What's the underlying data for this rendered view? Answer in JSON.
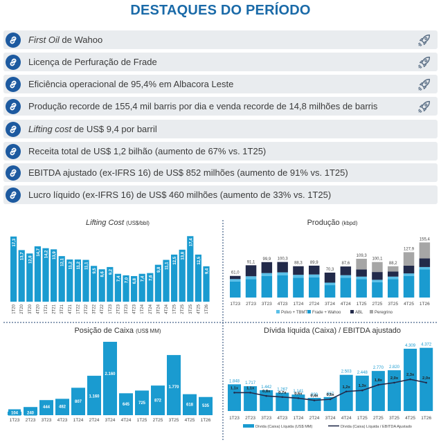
{
  "header": {
    "title": "DESTAQUES DO PERÍODO"
  },
  "highlights": [
    {
      "italic": "First Oil",
      "rest": " de Wahoo",
      "rocket": true
    },
    {
      "italic": "",
      "rest": "Licença de Perfuração de Frade",
      "rocket": true
    },
    {
      "italic": "",
      "rest": "Eficiência operacional de 95,4% em Albacora Leste",
      "rocket": true
    },
    {
      "italic": "",
      "rest": "Produção recorde de 155,4 mil barris por dia e venda recorde de 14,8 milhões de barris",
      "rocket": true
    },
    {
      "italic": "Lifting cost",
      "rest": " de US$ 9,4 por barril",
      "rocket": false
    },
    {
      "italic": "",
      "rest": "Receita total de US$ 1,2 bilhão (aumento de 67% vs. 1T25)",
      "rocket": false
    },
    {
      "italic": "",
      "rest": "EBITDA ajustado (ex-IFRS 16) de US$ 852 milhões (aumento de 91% vs. 1T25)",
      "rocket": false
    },
    {
      "italic": "",
      "rest": "Lucro líquido (ex-IFRS 16) de US$ 460 milhões (aumento de 33% vs. 1T25)",
      "rocket": false
    }
  ],
  "icons": {
    "badge": "link-icon",
    "rocket": "rocket-icon"
  },
  "colors": {
    "accent": "#1a6aa8",
    "bar": "#1a9bd0",
    "dark": "#222a4a",
    "gray": "#a6a6a6"
  },
  "chart_data": [
    {
      "type": "bar",
      "title_main": "Lifting Cost",
      "title_unit": "(US$/bbl)",
      "categories": [
        "1T20",
        "2T20",
        "3T20",
        "4T20",
        "1T21",
        "2T21",
        "3T21",
        "4T21",
        "1T22",
        "2T22",
        "3T22",
        "4T22",
        "1T23",
        "2T23",
        "3T23",
        "4T23",
        "1T24",
        "2T24",
        "3T24",
        "4T24",
        "1T25",
        "2T25",
        "3T25",
        "4T25",
        "1T26"
      ],
      "values": [
        17.3,
        13.7,
        12.8,
        14.7,
        14.2,
        13.9,
        12.1,
        11.2,
        11.2,
        11.1,
        9.5,
        8.6,
        9.2,
        7.4,
        7.0,
        6.8,
        7.4,
        7.6,
        9.8,
        11.1,
        12.5,
        13.8,
        17.4,
        12.5,
        9.4
      ],
      "labels": [
        "17,3",
        "13,7",
        "12,8",
        "14,7",
        "14,2",
        "13,9",
        "12,1",
        "11,2",
        "11,2",
        "11,1",
        "9,5",
        "8,6",
        "9,2",
        "7,4",
        "7,0",
        "6,8",
        "7,4",
        "7,6",
        "9,8",
        "11,1",
        "12,5",
        "13,8",
        "17,4",
        "12,5",
        "9,4"
      ],
      "ylim": [
        0,
        18
      ]
    },
    {
      "type": "bar",
      "stacked": true,
      "title_main": "Produção",
      "title_unit": "(kbpd)",
      "categories": [
        "1T23",
        "2T23",
        "3T23",
        "4T23",
        "1T24",
        "2T24",
        "3T24",
        "4T24",
        "1T25",
        "2T25",
        "3T25",
        "4T25",
        "1T26"
      ],
      "series": [
        {
          "name": "Polvo + TBMT",
          "values": [
            7,
            8,
            8,
            8,
            8,
            8,
            7,
            7,
            7,
            7,
            7,
            7,
            7
          ]
        },
        {
          "name": "Frade + Wahoo",
          "values": [
            45,
            52,
            61,
            63,
            56,
            57,
            35,
            56,
            52,
            43,
            52,
            61,
            79
          ]
        },
        {
          "name": "ABL",
          "values": [
            9,
            31,
            30.9,
            29.3,
            24.3,
            24.9,
            28.3,
            24.6,
            20,
            22,
            14.2,
            21.9,
            24.4
          ]
        },
        {
          "name": "Peregrino",
          "values": [
            0,
            0,
            0,
            0,
            0,
            0,
            0,
            0,
            30.3,
            28.1,
            15,
            38,
            45
          ]
        }
      ],
      "totals": [
        "61,0",
        "91,1",
        "99,9",
        "100,3",
        "88,3",
        "89,9",
        "70,3",
        "87,6",
        "109,3",
        "100,1",
        "88,2",
        "127,9",
        "155,4"
      ],
      "total_values": [
        61.0,
        91.1,
        99.9,
        100.3,
        88.3,
        89.9,
        70.3,
        87.6,
        109.3,
        100.1,
        88.2,
        127.9,
        155.4
      ],
      "ylim": [
        0,
        160
      ]
    },
    {
      "type": "bar",
      "title_main": "Posição de Caixa",
      "title_unit": "(US$ MM)",
      "categories": [
        "1T23",
        "2T23",
        "3T23",
        "4T23",
        "1T24",
        "2T24",
        "3T24",
        "4T24",
        "1T25",
        "2T25",
        "3T25",
        "4T25",
        "1T26"
      ],
      "values": [
        104,
        240,
        444,
        482,
        807,
        1160,
        2160,
        645,
        725,
        872,
        1770,
        618,
        535
      ],
      "labels": [
        "104",
        "240",
        "444",
        "482",
        "807",
        "1.160",
        "2.160",
        "645",
        "725",
        "872",
        "1.770",
        "618",
        "535"
      ],
      "ylim": [
        0,
        2200
      ]
    },
    {
      "type": "bar",
      "title": "Dívida líquida (Caixa) / EBITDA ajustado",
      "categories": [
        "1T23",
        "2T23",
        "3T23",
        "4T23",
        "1T24",
        "2T24",
        "3T24",
        "4T24",
        "1T25",
        "2T25",
        "3T25",
        "4T25",
        "1T26"
      ],
      "values": [
        1848,
        1717,
        1442,
        1267,
        1141,
        909,
        967,
        2503,
        2448,
        2770,
        2820,
        4309,
        4372
      ],
      "labels": [
        "1.848",
        "1.717",
        "1.442",
        "1.267",
        "1.141",
        "909",
        "967",
        "2.503",
        "2.448",
        "2.770",
        "2.820",
        "4.309",
        "4.372"
      ],
      "ratio": [
        1.1,
        1.1,
        0.8,
        0.7,
        0.6,
        0.4,
        0.5,
        1.2,
        1.3,
        1.8,
        2.0,
        2.3,
        2.0
      ],
      "ratio_labels": [
        "1,1x",
        "1,1x",
        "0,8x",
        "0,7x",
        "0,6x",
        "0,4x",
        "0,5x",
        "1,2x",
        "1,3x",
        "1,8x",
        "2,0x",
        "2,3x",
        "2,0x"
      ],
      "legend": [
        "Dívida (Caixa) Líquida (US$ MM)",
        "Dívida (Caixa) Líquida / EBITDA Ajustado"
      ],
      "ylim": [
        0,
        4500
      ]
    }
  ]
}
